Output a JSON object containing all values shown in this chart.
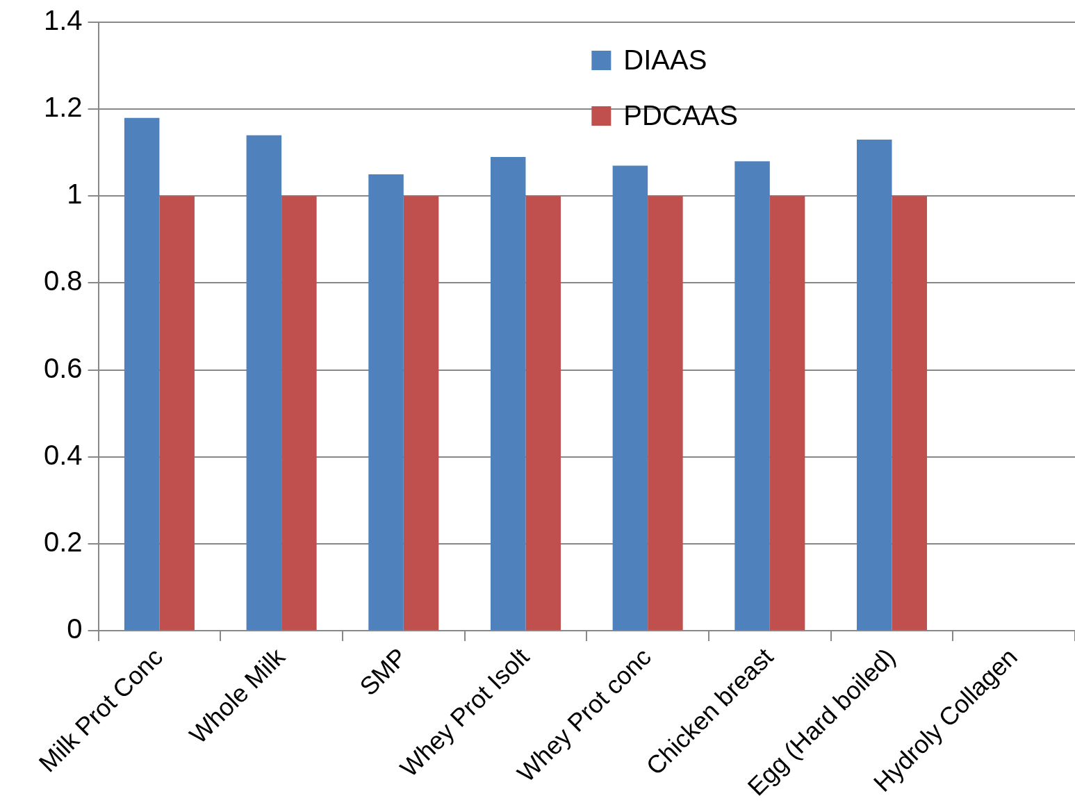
{
  "chart_data": {
    "type": "bar",
    "categories": [
      "Milk Prot Conc",
      "Whole Milk",
      "SMP",
      "Whey Prot Isolt",
      "Whey Prot conc",
      "Chicken breast",
      "Egg (Hard boiled)",
      "Hydroly Collagen"
    ],
    "series": [
      {
        "name": "DIAAS",
        "color": "#4f81bd",
        "values": [
          1.18,
          1.14,
          1.05,
          1.09,
          1.07,
          1.08,
          1.13,
          null
        ]
      },
      {
        "name": "PDCAAS",
        "color": "#c0504d",
        "values": [
          1.0,
          1.0,
          1.0,
          1.0,
          1.0,
          1.0,
          1.0,
          null
        ]
      }
    ],
    "ylim": [
      0,
      1.4
    ],
    "yticks": [
      {
        "value": 0,
        "label": "0"
      },
      {
        "value": 0.2,
        "label": "0.2"
      },
      {
        "value": 0.4,
        "label": "0.4"
      },
      {
        "value": 0.6,
        "label": "0.6"
      },
      {
        "value": 0.8,
        "label": "0.8"
      },
      {
        "value": 1,
        "label": "1"
      },
      {
        "value": 1.2,
        "label": "1.2"
      },
      {
        "value": 1.4,
        "label": "1.4"
      }
    ],
    "grid": "y",
    "legend": "top"
  }
}
